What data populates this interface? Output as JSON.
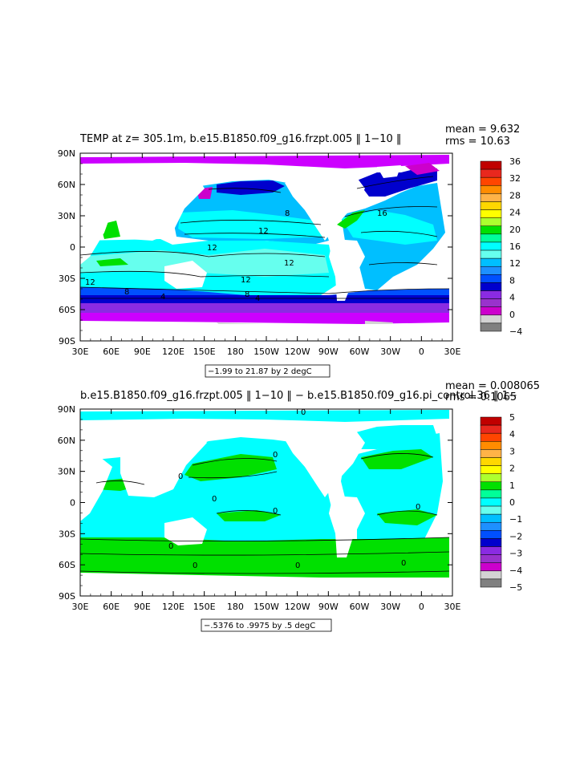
{
  "chart_data": [
    {
      "type": "heatmap",
      "title": "TEMP at z= 305.1m, b.e15.B1850.f09_g16.frzpt.005 ‖ 1−10 ‖",
      "stats": {
        "mean": "mean = 9.632",
        "rms": "rms = 10.63"
      },
      "x_ticks": [
        "30E",
        "60E",
        "90E",
        "120E",
        "150E",
        "180",
        "150W",
        "120W",
        "90W",
        "60W",
        "30W",
        "0",
        "30E"
      ],
      "y_ticks": [
        "90N",
        "60N",
        "30N",
        "0",
        "30S",
        "60S",
        "90S"
      ],
      "xlim": [
        30,
        390
      ],
      "ylim": [
        -90,
        90
      ],
      "range_label": "−1.99 to 21.87 by 2 degC",
      "colorbar": {
        "levels": [
          "36",
          "32",
          "28",
          "24",
          "20",
          "16",
          "12",
          "8",
          "4",
          "0",
          "−4"
        ],
        "colors": [
          "#c00000",
          "#e8281e",
          "#ff4500",
          "#ff8c00",
          "#ffb347",
          "#ffd700",
          "#ffff00",
          "#adff2f",
          "#00e000",
          "#00ff99",
          "#00ffff",
          "#66ffee",
          "#00bfff",
          "#1e90ff",
          "#0050ff",
          "#0000cd",
          "#8a2be2",
          "#9932cc",
          "#cc00cc",
          "#d3d3d3",
          "#808080"
        ]
      },
      "contour_labels": [
        "8",
        "16",
        "12",
        "12",
        "12",
        "12",
        "12",
        "8",
        "4",
        "4",
        "8"
      ]
    },
    {
      "type": "heatmap",
      "title": "b.e15.B1850.f09_g16.frzpt.005 ‖ 1−10 ‖ − b.e15.B1850.f09_g16.pi_control.36 ‖ 1−",
      "stats": {
        "mean": "mean = 0.008065",
        "rms": "rms = 0.1065"
      },
      "x_ticks": [
        "30E",
        "60E",
        "90E",
        "120E",
        "150E",
        "180",
        "150W",
        "120W",
        "90W",
        "60W",
        "30W",
        "0",
        "30E"
      ],
      "y_ticks": [
        "90N",
        "60N",
        "30N",
        "0",
        "30S",
        "60S",
        "90S"
      ],
      "xlim": [
        30,
        390
      ],
      "ylim": [
        -90,
        90
      ],
      "range_label": "−.5376 to .9975 by .5 degC",
      "colorbar": {
        "levels": [
          "5",
          "4",
          "3",
          "2",
          "1",
          "0",
          "−1",
          "−2",
          "−3",
          "−4",
          "−5"
        ],
        "colors": [
          "#c00000",
          "#e8281e",
          "#ff4500",
          "#ff8c00",
          "#ffb347",
          "#ffd700",
          "#ffff00",
          "#adff2f",
          "#00e000",
          "#00ff99",
          "#00ffff",
          "#66ffee",
          "#00bfff",
          "#1e90ff",
          "#0050ff",
          "#0000cd",
          "#8a2be2",
          "#9932cc",
          "#cc00cc",
          "#d3d3d3",
          "#808080"
        ]
      },
      "contour_labels": [
        "0",
        "0",
        "0",
        "0",
        "0",
        "0",
        "0",
        "0",
        "0",
        "0"
      ]
    }
  ]
}
